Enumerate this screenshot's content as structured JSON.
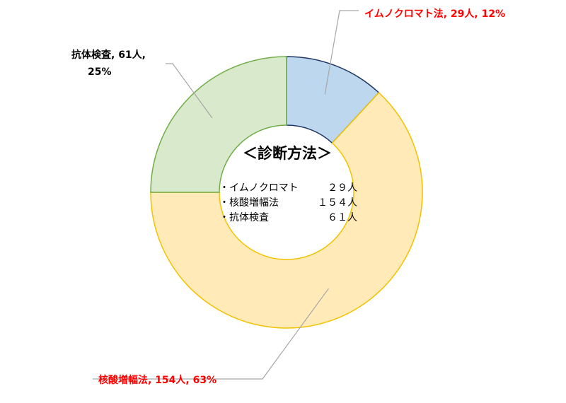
{
  "chart_data": {
    "type": "pie",
    "variant": "donut",
    "title": "＜診断方法＞",
    "slices": [
      {
        "name": "イムノクロマト法",
        "value": 29,
        "percent": 12,
        "label": "イムノクロマト法, 29人, 12%",
        "fill": "#bdd7ee",
        "stroke": "#1f3864",
        "label_color": "#ff0000"
      },
      {
        "name": "核酸増幅法",
        "value": 154,
        "percent": 63,
        "label": "核酸増幅法, 154人, 63%",
        "fill": "#ffeab8",
        "stroke": "#f2c200",
        "label_color": "#ff0000"
      },
      {
        "name": "抗体検査",
        "value": 61,
        "percent": 25,
        "label_lines": [
          "抗体検査, 61人,",
          "25%"
        ],
        "fill": "#d8e9cc",
        "stroke": "#70ad47",
        "label_color": "#000000"
      }
    ],
    "center_list": [
      {
        "name": "・イムノクロマト",
        "count": "２９人"
      },
      {
        "name": "・核酸増幅法",
        "count": "１５４人"
      },
      {
        "name": "・抗体検査",
        "count": "６１人"
      }
    ],
    "leader_color": "#a6a6a6"
  }
}
